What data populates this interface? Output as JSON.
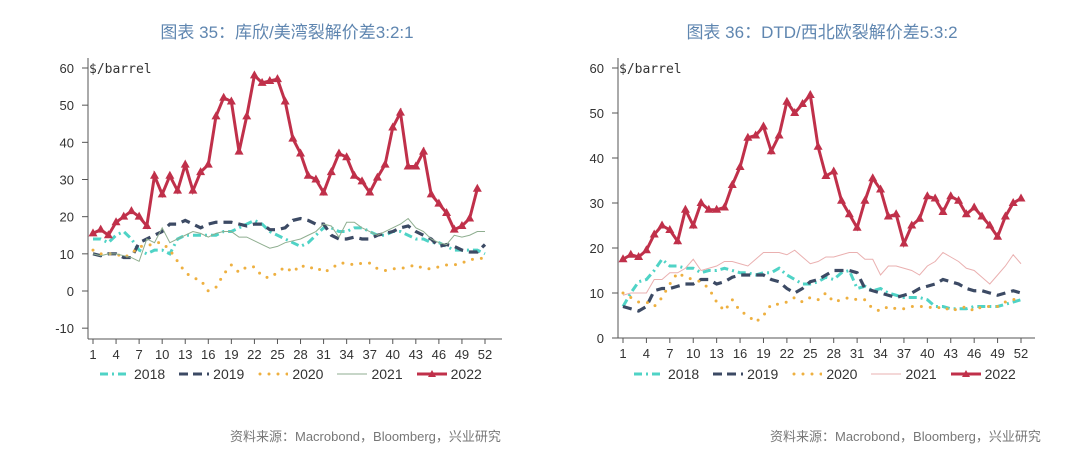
{
  "source": "资料来源：Macrobond，Bloomberg，兴业研究",
  "colors": {
    "2018": "#4fd3c6",
    "2019": "#3c4a64",
    "2020": "#eeb040",
    "2022": "#c0304a"
  },
  "chart_data": [
    {
      "type": "line",
      "title": "图表 35：库欣/美湾裂解价差3:2:1",
      "ylabel": "$/barrel",
      "ylim": [
        -10,
        60
      ],
      "yticks": [
        -10,
        0,
        10,
        20,
        30,
        40,
        50,
        60
      ],
      "xticks": [
        1,
        4,
        7,
        10,
        13,
        16,
        19,
        22,
        25,
        28,
        31,
        34,
        37,
        40,
        43,
        46,
        49,
        52
      ],
      "grid": false,
      "legend": "bottom",
      "color_2021": "#8fae90",
      "series": [
        {
          "name": "2018",
          "style": "dash-dot",
          "values": [
            14,
            14,
            13,
            15,
            16,
            14,
            11,
            10,
            11,
            11,
            10,
            14,
            15,
            15,
            15,
            15,
            15,
            16,
            16,
            17,
            18,
            19,
            18,
            16,
            15,
            14,
            13,
            12,
            13,
            15,
            17,
            17,
            16,
            16,
            17,
            17,
            16,
            15,
            15,
            16,
            16,
            15,
            14,
            14,
            13,
            13,
            12,
            11,
            11,
            11,
            11,
            10
          ]
        },
        {
          "name": "2019",
          "style": "dash",
          "values": [
            10,
            9.5,
            10,
            10,
            9,
            9,
            13,
            14,
            15,
            16,
            18,
            18,
            19,
            18,
            17,
            18,
            18.5,
            18.5,
            18.5,
            18,
            17.5,
            18,
            18,
            16.5,
            16.5,
            17,
            19,
            19.5,
            19,
            18,
            18,
            15,
            14,
            14,
            14.5,
            14,
            14,
            15,
            15.5,
            16,
            17,
            17.5,
            16,
            15,
            14,
            12,
            12.5,
            12,
            11,
            10.5,
            10.5,
            12.5
          ]
        },
        {
          "name": "2020",
          "style": "dot",
          "values": [
            11,
            10,
            10,
            10,
            9,
            10,
            12,
            12,
            13,
            13,
            11,
            8,
            5,
            3.5,
            3,
            0,
            1,
            4.5,
            7,
            5,
            6.5,
            6.5,
            4,
            3.5,
            5,
            6.5,
            5,
            7,
            6,
            6.5,
            5,
            6,
            7.5,
            7.5,
            7,
            7.5,
            7.5,
            6,
            5.5,
            6,
            6,
            6.5,
            7,
            6,
            6,
            6.5,
            7,
            7,
            7.5,
            8.5,
            8.5,
            9
          ]
        },
        {
          "name": "2021",
          "style": "thin",
          "values": [
            10,
            9.5,
            10,
            10,
            9.5,
            9,
            8,
            14,
            13,
            17,
            13,
            14,
            15,
            16,
            15.5,
            14.5,
            15.5,
            16,
            16,
            14.5,
            14.5,
            13.5,
            12.5,
            11.5,
            12,
            13,
            13.5,
            14,
            15,
            16,
            18,
            17.5,
            14.5,
            18.5,
            18.5,
            17,
            16,
            15,
            16,
            17,
            18,
            19.5,
            17,
            16,
            14,
            13,
            12.5,
            15,
            14.5,
            15,
            16,
            16
          ]
        },
        {
          "name": "2022",
          "style": "triangle",
          "values": [
            15.5,
            16.5,
            15,
            18.5,
            20,
            21.5,
            20,
            17.5,
            31,
            26,
            31,
            27,
            34,
            27,
            32,
            34,
            47,
            52,
            51,
            37.5,
            47,
            58,
            56,
            56.5,
            57,
            51,
            41,
            37,
            31,
            30,
            26.5,
            32,
            37,
            36,
            31,
            29.5,
            26.5,
            30.5,
            34,
            44,
            48,
            33.5,
            33.5,
            37.5,
            26,
            23.5,
            21,
            16.5,
            17.5,
            19.5,
            27.5
          ]
        }
      ]
    },
    {
      "type": "line",
      "title": "图表 36：DTD/西北欧裂解价差5:3:2",
      "ylabel": "$/barrel",
      "ylim": [
        0,
        60
      ],
      "yticks": [
        0,
        10,
        20,
        30,
        40,
        50,
        60
      ],
      "xticks": [
        1,
        4,
        7,
        10,
        13,
        16,
        19,
        22,
        25,
        28,
        31,
        34,
        37,
        40,
        43,
        46,
        49,
        52
      ],
      "grid": false,
      "legend": "bottom",
      "color_2021": "#eab0b0",
      "series": [
        {
          "name": "2018",
          "style": "dash-dot",
          "values": [
            7,
            10,
            12.5,
            13,
            15,
            17.5,
            16,
            16,
            15.5,
            15.5,
            14.5,
            15,
            15,
            15.5,
            15,
            14.5,
            14.5,
            14,
            14.5,
            14.5,
            15.5,
            14,
            13,
            12,
            12,
            12.5,
            13.5,
            13,
            14.5,
            15,
            11,
            11.5,
            10.5,
            11,
            10,
            9.5,
            9,
            9,
            9,
            8.5,
            7,
            7,
            6.5,
            6.5,
            6.5,
            7,
            7,
            7,
            7,
            7.5,
            8,
            8.5
          ]
        },
        {
          "name": "2019",
          "style": "dash",
          "values": [
            7,
            6.5,
            6,
            7,
            10.5,
            11,
            11,
            11.5,
            12,
            12,
            13,
            13,
            12,
            12.5,
            13.5,
            14,
            14,
            14,
            14,
            13,
            12.5,
            11,
            10,
            11,
            12.5,
            13,
            14,
            15,
            15,
            15,
            14.5,
            11,
            10.5,
            10,
            9.5,
            9,
            9.5,
            10,
            11,
            11.5,
            12,
            13,
            12.5,
            12,
            11,
            10.5,
            10.5,
            10,
            9.5,
            10,
            10.5,
            10
          ]
        },
        {
          "name": "2020",
          "style": "dot",
          "values": [
            10,
            9,
            8,
            8,
            7,
            9,
            12,
            14.5,
            13.5,
            13,
            12.5,
            11,
            8,
            6,
            8.5,
            6,
            5,
            3.5,
            5,
            7.5,
            7.5,
            8,
            9,
            8,
            9,
            8.5,
            10,
            8,
            8.5,
            9,
            8.5,
            8.5,
            6.5,
            6,
            7,
            6.5,
            6.5,
            7,
            7,
            7,
            6.5,
            7,
            6,
            6.5,
            7,
            6,
            7,
            7,
            7,
            8,
            8.5,
            9
          ]
        },
        {
          "name": "2021",
          "style": "thin",
          "values": [
            9.5,
            10,
            10,
            10,
            13,
            13,
            14.5,
            14.5,
            15.5,
            17.5,
            15,
            15.5,
            16,
            17,
            17,
            16.5,
            16,
            17.5,
            19,
            19,
            19,
            18.5,
            19.5,
            18,
            16.5,
            17,
            18,
            18,
            18.5,
            19,
            19,
            17.5,
            17.5,
            14,
            16,
            16,
            15.5,
            15,
            14,
            16,
            17,
            19,
            18,
            17,
            15.5,
            15,
            13.5,
            12,
            14,
            16,
            18.5,
            16.5
          ]
        },
        {
          "name": "2022",
          "style": "triangle",
          "values": [
            17.5,
            18.5,
            18,
            19.5,
            23,
            25,
            24,
            21.5,
            28.5,
            25,
            30,
            28.5,
            28.5,
            29,
            34,
            38,
            44.5,
            45,
            47,
            41.5,
            45,
            52.5,
            50,
            52,
            54,
            42.5,
            36,
            37,
            30.5,
            27.5,
            24.5,
            30.5,
            35.5,
            33,
            27,
            27.5,
            21,
            25,
            26.5,
            31.5,
            31,
            28,
            31.5,
            30.5,
            27.5,
            29,
            27,
            25,
            22.5,
            27,
            30,
            31
          ]
        }
      ]
    }
  ]
}
